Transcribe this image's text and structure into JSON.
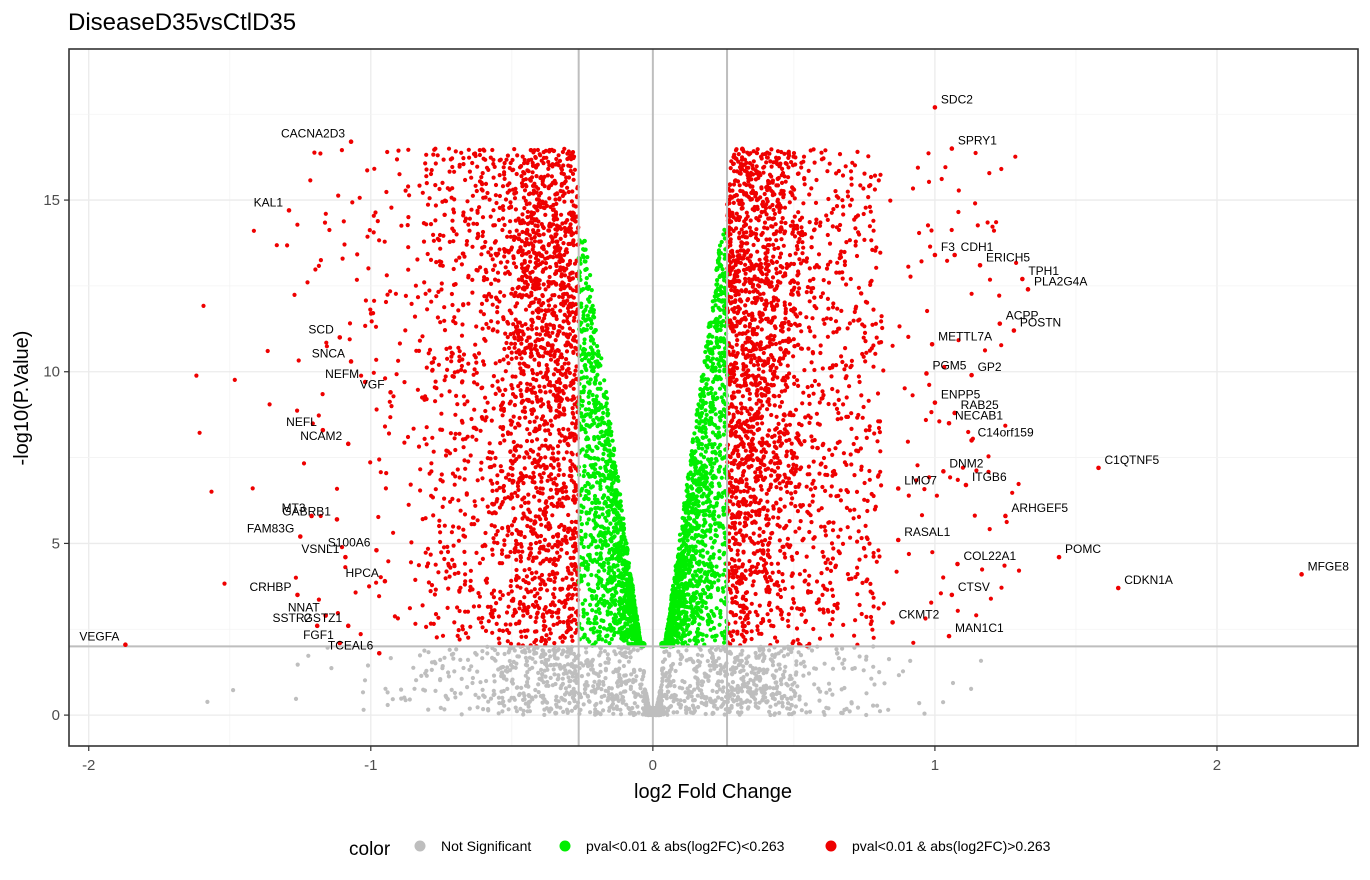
{
  "chart_data": {
    "type": "scatter",
    "title": "DiseaseD35vsCtlD35",
    "xlabel": "log2 Fold Change",
    "ylabel": "-log10(P.Value)",
    "xlim": [
      -2.07,
      2.5
    ],
    "ylim": [
      -0.9,
      19.4
    ],
    "x_ticks": [
      -2,
      -1,
      0,
      1,
      2
    ],
    "y_ticks": [
      0,
      5,
      10,
      15
    ],
    "grid": true,
    "thresholds": {
      "log2fc": 0.263,
      "pvalue_neglog10": 2
    },
    "colors": {
      "ns": "#BEBEBE",
      "sig_small": "#00EE00",
      "sig_large": "#EE0000",
      "threshold_line": "#BEBEBE",
      "panel_border": "#333333"
    },
    "legend": {
      "title": "color",
      "position": "bottom",
      "items": [
        {
          "label": "Not Significant",
          "color": "#BEBEBE"
        },
        {
          "label": "pval<0.01 & abs(log2FC)<0.263",
          "color": "#00EE00"
        },
        {
          "label": "pval<0.01 & abs(log2FC)>0.263",
          "color": "#EE0000"
        }
      ]
    },
    "labeled_points": [
      {
        "gene": "SDC2",
        "x": 1.0,
        "y": 17.7
      },
      {
        "gene": "CACNA2D3",
        "x": -1.07,
        "y": 16.7
      },
      {
        "gene": "SPRY1",
        "x": 1.06,
        "y": 16.5
      },
      {
        "gene": "KAL1",
        "x": -1.29,
        "y": 14.7
      },
      {
        "gene": "CDH1",
        "x": 1.07,
        "y": 13.4
      },
      {
        "gene": "F3",
        "x": 1.0,
        "y": 13.4
      },
      {
        "gene": "TPH1",
        "x": 1.31,
        "y": 12.7
      },
      {
        "gene": "ERICH5",
        "x": 1.16,
        "y": 13.1
      },
      {
        "gene": "PLA2G4A",
        "x": 1.33,
        "y": 12.4
      },
      {
        "gene": "ACPP",
        "x": 1.23,
        "y": 11.4
      },
      {
        "gene": "SCD",
        "x": -1.11,
        "y": 11.0
      },
      {
        "gene": "POSTN",
        "x": 1.28,
        "y": 11.2
      },
      {
        "gene": "METTL7A",
        "x": 0.99,
        "y": 10.8
      },
      {
        "gene": "SNCA",
        "x": -1.07,
        "y": 10.3
      },
      {
        "gene": "GP2",
        "x": 1.13,
        "y": 9.9
      },
      {
        "gene": "PGM5",
        "x": 0.97,
        "y": 9.95
      },
      {
        "gene": "NEFM",
        "x": -1.02,
        "y": 9.7
      },
      {
        "gene": "VGF",
        "x": -0.93,
        "y": 9.4
      },
      {
        "gene": "ENPP5",
        "x": 1.0,
        "y": 9.1
      },
      {
        "gene": "RAB25",
        "x": 1.07,
        "y": 8.8
      },
      {
        "gene": "NEFL",
        "x": -1.17,
        "y": 8.3
      },
      {
        "gene": "NECAB1",
        "x": 1.05,
        "y": 8.5
      },
      {
        "gene": "C14orf159",
        "x": 1.13,
        "y": 8.0
      },
      {
        "gene": "NCAM2",
        "x": -1.08,
        "y": 7.9
      },
      {
        "gene": "DNM2",
        "x": 1.03,
        "y": 7.1
      },
      {
        "gene": "C1QTNF5",
        "x": 1.58,
        "y": 7.2
      },
      {
        "gene": "LMO7",
        "x": 0.87,
        "y": 6.6
      },
      {
        "gene": "ITGB6",
        "x": 1.11,
        "y": 6.7
      },
      {
        "gene": "MT3",
        "x": -1.21,
        "y": 5.8
      },
      {
        "gene": "GABRB1",
        "x": -1.12,
        "y": 5.7
      },
      {
        "gene": "FAM83G",
        "x": -1.25,
        "y": 5.2
      },
      {
        "gene": "ARHGEF5",
        "x": 1.25,
        "y": 5.8
      },
      {
        "gene": "RASAL1",
        "x": 0.87,
        "y": 5.1
      },
      {
        "gene": "S100A6",
        "x": -0.98,
        "y": 4.8
      },
      {
        "gene": "COL22A1",
        "x": 1.08,
        "y": 4.4
      },
      {
        "gene": "POMC",
        "x": 1.44,
        "y": 4.6
      },
      {
        "gene": "VSNL1",
        "x": -1.09,
        "y": 4.6
      },
      {
        "gene": "HPCA",
        "x": -0.95,
        "y": 3.9
      },
      {
        "gene": "CRHBP",
        "x": -1.26,
        "y": 3.5
      },
      {
        "gene": "CTSV",
        "x": 1.06,
        "y": 3.5
      },
      {
        "gene": "MFGE8",
        "x": 2.3,
        "y": 4.1
      },
      {
        "gene": "CDKN1A",
        "x": 1.65,
        "y": 3.7
      },
      {
        "gene": "NNAT",
        "x": -1.16,
        "y": 2.9
      },
      {
        "gene": "SSTR2",
        "x": -1.19,
        "y": 2.6
      },
      {
        "gene": "GSTZ1",
        "x": -1.08,
        "y": 2.6
      },
      {
        "gene": "CKMT2",
        "x": 0.85,
        "y": 2.7
      },
      {
        "gene": "VEGFA",
        "x": -1.87,
        "y": 2.05
      },
      {
        "gene": "FGF1",
        "x": -1.11,
        "y": 2.1
      },
      {
        "gene": "MAN1C1",
        "x": 1.05,
        "y": 2.3
      },
      {
        "gene": "TCEAL6",
        "x": -0.97,
        "y": 1.8
      }
    ]
  }
}
